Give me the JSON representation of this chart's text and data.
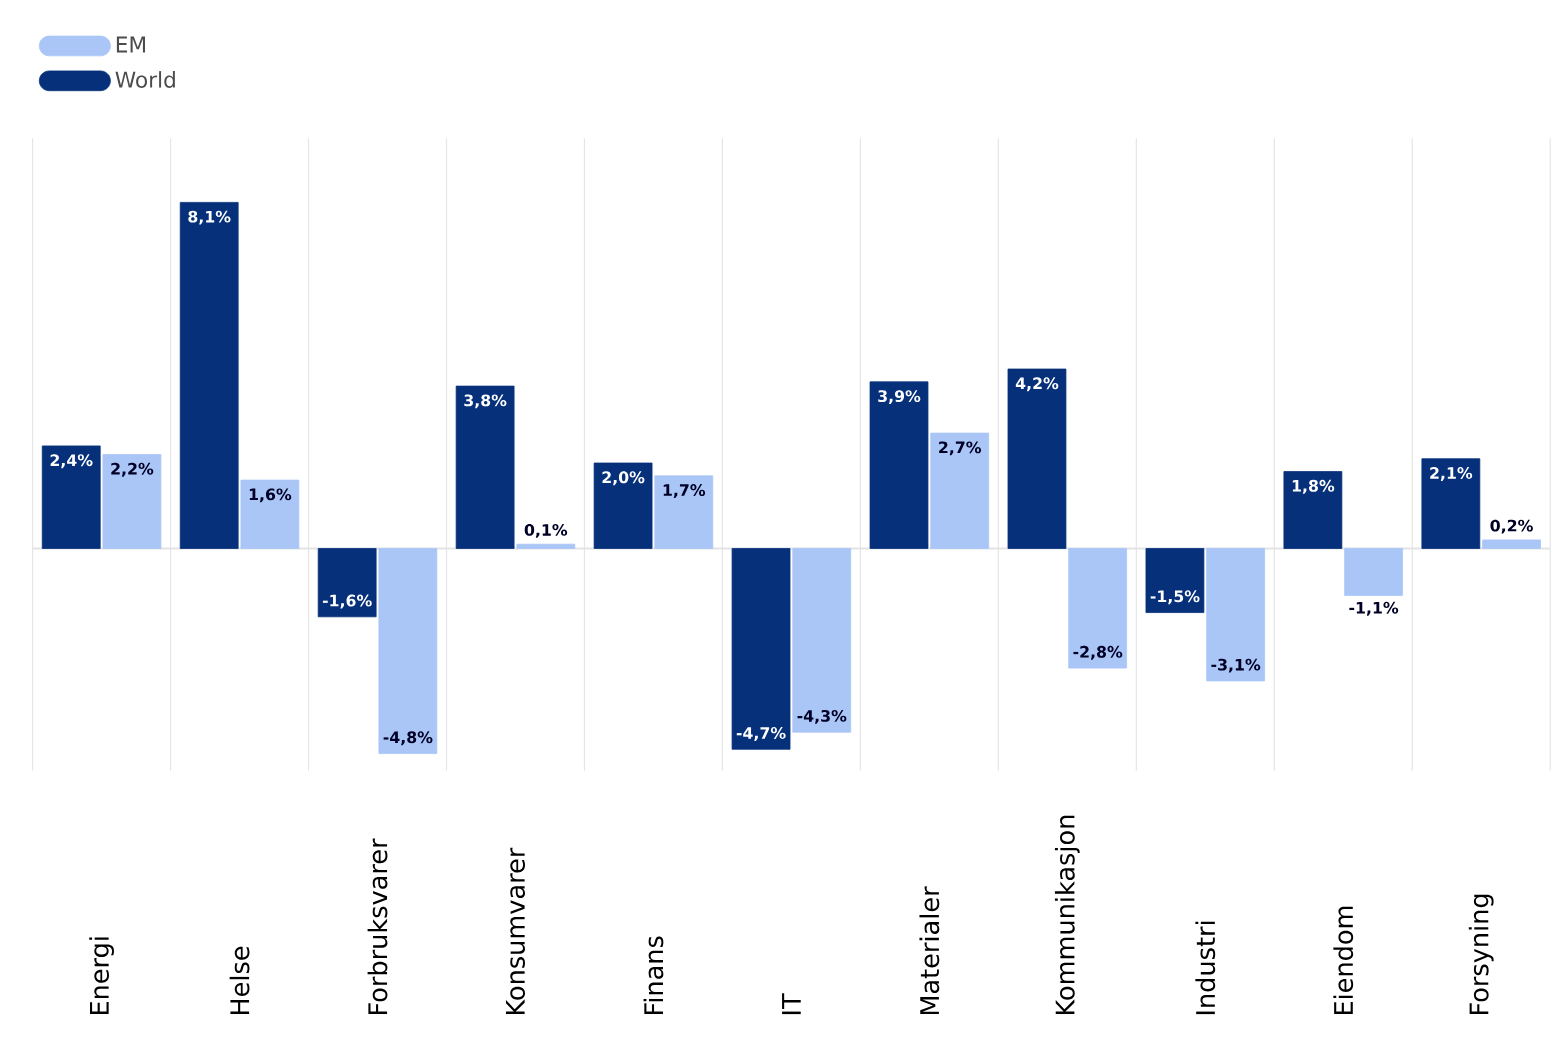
{
  "chart_data": {
    "type": "bar",
    "categories": [
      "Energi",
      "Helse",
      "Forbruksvarer",
      "Konsumvarer",
      "Finans",
      "IT",
      "Materialer",
      "Kommunikasjon",
      "Industri",
      "Eiendom",
      "Forsyning"
    ],
    "series": [
      {
        "name": "World",
        "color": "#06307a",
        "values": [
          2.4,
          8.1,
          -1.6,
          3.8,
          2.0,
          -4.7,
          3.9,
          4.2,
          -1.5,
          1.8,
          2.1
        ],
        "value_labels": [
          "2,4%",
          "8,1%",
          "-1,6%",
          "3,8%",
          "2,0%",
          "-4,7%",
          "3,9%",
          "4,2%",
          "-1,5%",
          "1,8%",
          "2,1%"
        ]
      },
      {
        "name": "EM",
        "color": "#a9c6f7",
        "values": [
          2.2,
          1.6,
          -4.8,
          0.1,
          1.7,
          -4.3,
          2.7,
          -2.8,
          -3.1,
          -1.1,
          0.2
        ],
        "value_labels": [
          "2,2%",
          "1,6%",
          "-4,8%",
          "0,1%",
          "1,7%",
          "-4,3%",
          "2,7%",
          "-2,8%",
          "-3,1%",
          "-1,1%",
          "0,2%"
        ]
      }
    ],
    "ylim": [
      -5.2,
      9.6
    ],
    "grid": "x",
    "legend": "top left",
    "ref_lines": [
      {
        "axis": "y",
        "value": 0,
        "color": "#e3e3e3"
      }
    ]
  }
}
